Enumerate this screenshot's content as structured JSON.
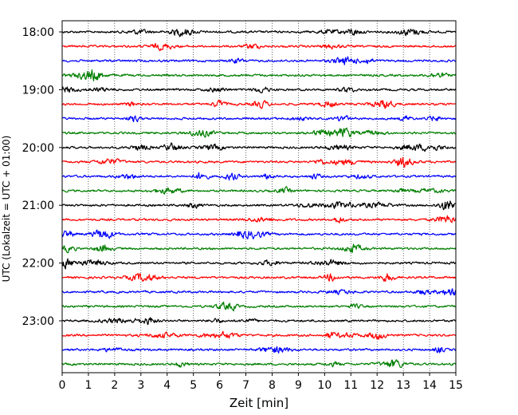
{
  "chart_data": {
    "type": "line",
    "title": "",
    "xlabel": "Zeit  [min]",
    "ylabel": "UTC (Lokalzeit = UTC + 01:00)",
    "xlim": [
      0,
      15
    ],
    "x_ticks": [
      0,
      1,
      2,
      3,
      4,
      5,
      6,
      7,
      8,
      9,
      10,
      11,
      12,
      13,
      14,
      15
    ],
    "y_tick_labels": [
      "18:00",
      "19:00",
      "20:00",
      "21:00",
      "22:00",
      "23:00"
    ],
    "y_tick_rows": [
      0,
      4,
      8,
      12,
      16,
      20
    ],
    "row_minutes": 15,
    "rows": 24,
    "vertical_grid": "dotted",
    "trace_colors": [
      "#000000",
      "#ff0000",
      "#0000ff",
      "#007f00"
    ],
    "series_note": ""
  }
}
